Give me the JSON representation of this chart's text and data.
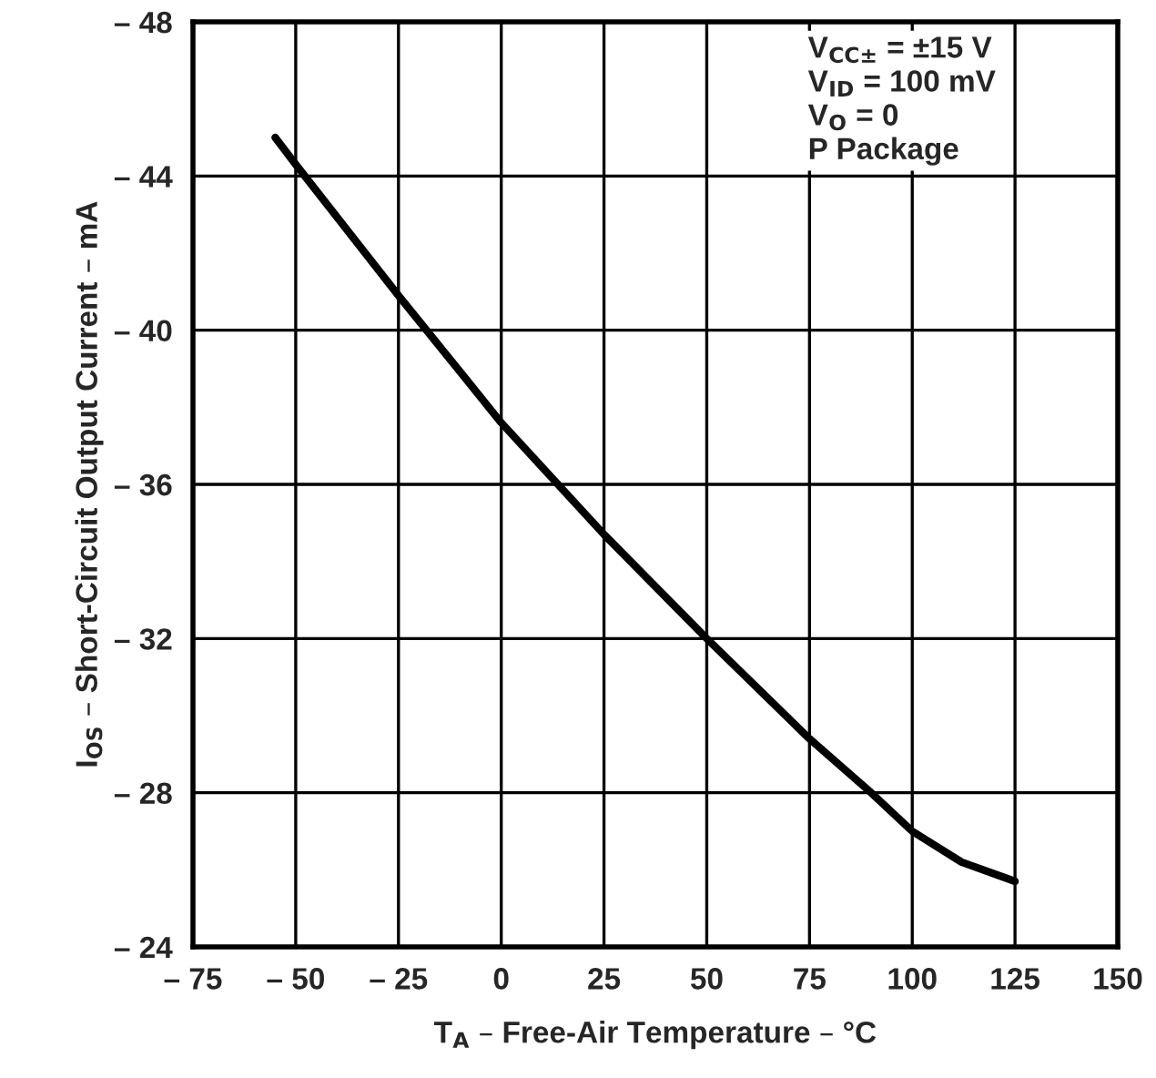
{
  "chart_data": {
    "type": "line",
    "xlabel": "T$_{A}$ – Free-Air Temperature – °C",
    "ylabel": "I$_{OS}$ – Short-Circuit Output Current – mA",
    "x": [
      -55,
      -50,
      -25,
      0,
      25,
      50,
      75,
      90,
      100,
      112,
      125
    ],
    "series": [
      {
        "color": "#000000",
        "values": [
          -45.0,
          -44.3,
          -40.9,
          -37.6,
          -34.7,
          -32.0,
          -29.4,
          -28.0,
          -27.0,
          -26.2,
          -25.7
        ]
      }
    ],
    "xlim": [
      -75,
      150
    ],
    "xticks": [
      {
        "value": -75,
        "label": "– 75"
      },
      {
        "value": -50,
        "label": "– 50"
      },
      {
        "value": -25,
        "label": "– 25"
      },
      0,
      25,
      50,
      75,
      100,
      125,
      150
    ],
    "ylim": [
      -24,
      -48
    ],
    "yticks": [
      {
        "value": -24,
        "label": "– 24"
      },
      {
        "value": -28,
        "label": "– 28"
      },
      {
        "value": -32,
        "label": "– 32"
      },
      {
        "value": -36,
        "label": "– 36"
      },
      {
        "value": -40,
        "label": "– 40"
      },
      {
        "value": -44,
        "label": "– 44"
      },
      {
        "value": -48,
        "label": "– 48"
      }
    ],
    "grid": true,
    "annotations": [
      "V$_{CC±}$ = ±15 V",
      "V$_{ID}$ = 100 mV",
      "V$_{O}$ = 0",
      "P Package"
    ]
  }
}
